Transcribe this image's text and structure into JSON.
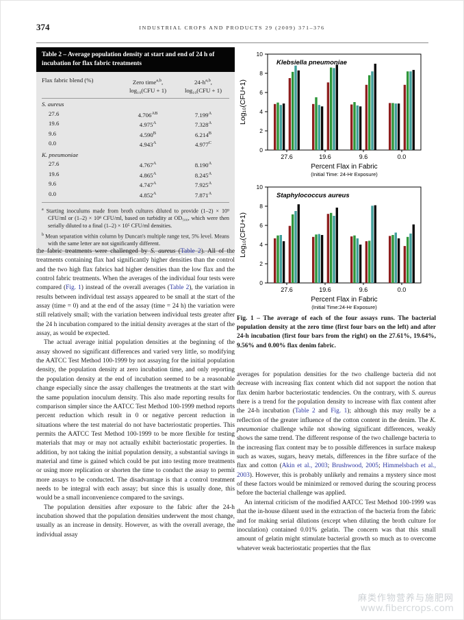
{
  "page": {
    "number": "374",
    "journal_line": "INDUSTRIAL CROPS AND PRODUCTS 29 (2009) 371–376"
  },
  "table2": {
    "caption": "Table 2 – Average population density at start and end of 24 h of incubation for flax fabric treatments",
    "columns": [
      {
        "line1": "Flax fabric blend (%)",
        "line2": ""
      },
      {
        "pre": "Zero time",
        "sup": "a,b",
        "post": ",",
        "line2": "log₁₀(CFU + 1)"
      },
      {
        "pre": "24-h",
        "sup": "a,b",
        "post": ",",
        "line2": "log₁₀(CFU + 1)"
      }
    ],
    "rows": [
      {
        "section": "S. aureus"
      },
      {
        "blend": "27.6",
        "zero": "4.706",
        "zero_sup": "AB",
        "h24": "7.199",
        "h24_sup": "A"
      },
      {
        "blend": "19.6",
        "zero": "4.975",
        "zero_sup": "A",
        "h24": "7.328",
        "h24_sup": "A"
      },
      {
        "blend": "9.6",
        "zero": "4.590",
        "zero_sup": "B",
        "h24": "6.214",
        "h24_sup": "B"
      },
      {
        "blend": "0.0",
        "zero": "4.943",
        "zero_sup": "A",
        "h24": "4.977",
        "h24_sup": "C"
      },
      {
        "section": "K. pneumoniae"
      },
      {
        "blend": "27.6",
        "zero": "4.767",
        "zero_sup": "A",
        "h24": "8.190",
        "h24_sup": "A"
      },
      {
        "blend": "19.6",
        "zero": "4.865",
        "zero_sup": "A",
        "h24": "8.245",
        "h24_sup": "A"
      },
      {
        "blend": "9.6",
        "zero": "4.747",
        "zero_sup": "A",
        "h24": "7.925",
        "h24_sup": "A"
      },
      {
        "blend": "0.0",
        "zero": "4.852",
        "zero_sup": "A",
        "h24": "7.871",
        "h24_sup": "A"
      }
    ],
    "footnotes": [
      {
        "mark": "a",
        "text": "Starting inoculums made from broth cultures diluted to provide (1–2) × 10⁹ CFU/ml or (1–2) × 10⁸ CFU/ml, based on turbidity at OD₅₀₀, which were then serially diluted to a final (1–2) × 10⁵ CFU/ml densities."
      },
      {
        "mark": "b",
        "text": "Mean separation within column by Duncan's multiple range test, 5% level. Means with the same letter are not significantly different."
      }
    ]
  },
  "left_column": {
    "paragraphs": [
      {
        "indent": false,
        "segs": [
          "the fabric treatments were challenged by ",
          {
            "t": "S. aureus",
            "s": "i"
          },
          " (",
          {
            "t": "Table 2",
            "s": "l"
          },
          "). All of the treatments containing flax had significantly higher densities than the control and the two high flax fabrics had higher densities than the low flax and the control fabric treatments. When the averages of the individual four tests were compared (",
          {
            "t": "Fig. 1",
            "s": "l"
          },
          ") instead of the overall averages (",
          {
            "t": "Table 2",
            "s": "l"
          },
          "), the variation in results between individual test assays appeared to be small at the start of the assay (time = 0) and at the end of the assay (time = 24 h) the variation were still relatively small; with the variation between individual tests greater after the 24 h incubation compared to the initial density averages at the start of the assay, as would be expected."
        ]
      },
      {
        "indent": true,
        "segs": [
          "The actual average initial population densities at the beginning of the assay showed no significant differences and varied very little, so modifying the AATCC Test Method 100-1999 by not assaying for the initial population density, the population density at zero incubation time, and only reporting the population density at the end of incubation seemed to be a reasonable change especially since the assay challenges the treatments at the start with the same population inoculum density. This also made reporting results for comparison simpler since the AATCC Test Method 100-1999 method reports percent reduction which result in 0 or negative percent reduction in situations where the test material do not have bacteriostatic properties. This permits the AATCC Test Method 100-1999 to be more flexible for testing materials that may or may not actually exhibit bacteriostatic properties. In addition, by not taking the initial population density, a substantial savings in material and time is gained which could be put into testing more treatments or using more replication or shorten the time to conduct the assay to permit more assays to be conducted. The disadvantage is that a control treatment needs to be integral with each assay; but since this is usually done, this would be a small inconvenience compared to the savings."
        ]
      },
      {
        "indent": true,
        "segs": [
          "The population densities after exposure to the fabric after the 24-h incubation showed that the population densities underwent the most change, usually as an increase in density. However, as with the overall average, the individual assay"
        ]
      }
    ]
  },
  "figure": {
    "caption": "Fig. 1 – The average of each of the four assays runs. The bacterial population density at the zero time (first four bars on the left) and after 24-h incubation (first four bars from the right) on the 27.61%, 19.64%, 9.56% and 0.00% flax denim fabric."
  },
  "right_column": {
    "paragraphs": [
      {
        "indent": false,
        "segs": [
          "averages for population densities for the two challenge bacteria did not decrease with increasing flax content which did not support the notion that flax denim harbor bacteriostatic tendencies. On the contrary, with ",
          {
            "t": "S. aureus",
            "s": "i"
          },
          " there is a trend for the population density to increase with flax content after the 24-h incubation (",
          {
            "t": "Table 2",
            "s": "l"
          },
          " and ",
          {
            "t": "Fig. 1",
            "s": "l"
          },
          "); although this may really be a reflection of the greater influence of the cotton content in the denim. The ",
          {
            "t": "K. pneumoniae",
            "s": "i"
          },
          " challenge while not showing significant differences, weakly shows the same trend. The different response of the two challenge bacteria to the increasing flax content may be to possible differences in surface makeup such as waxes, sugars, heavy metals, differences in the fibre surface of the flax and cotton (",
          {
            "t": "Akin et al., 2003",
            "s": "l"
          },
          "; ",
          {
            "t": "Brushwood, 2005",
            "s": "l"
          },
          "; ",
          {
            "t": "Himmelsbach et al., 2003",
            "s": "l"
          },
          "). However, this is probably unlikely and remains a mystery since most of these factors would be minimized or removed during the scouring process before the bacterial challenge was applied."
        ]
      },
      {
        "indent": true,
        "segs": [
          "An internal criticism of the modified AATCC Test Method 100-1999 was that the in-house diluent used in the extraction of the bacteria from the fabric and for making serial dilutions (except when diluting the broth culture for inoculation) contained 0.01% gelatin. The concern was that this small amount of gelatin might stimulate bacterial growth so much as to overcome whatever weak bacteriostatic properties that the flax"
        ]
      }
    ]
  },
  "watermark": {
    "line1": "麻类作物营养与施肥网",
    "line2": "www.fibercrops.com"
  },
  "chart_data": [
    {
      "type": "bar",
      "title": "Klebsiella pneumoniae",
      "ylabel": "Log₁₀(CFU+1)",
      "xlabel": "Percent Flax in Fabric",
      "xlabel_note": "(Initial Time: 24-Hr Exposure)",
      "ylim": [
        0,
        10
      ],
      "yticks": [
        0,
        2,
        4,
        6,
        8,
        10
      ],
      "categories": [
        "27.6",
        "19.6",
        "9.6",
        "0.0"
      ],
      "run_colors": [
        "#8e1f1f",
        "#2e9639",
        "#3f9f9b",
        "#0a0a0a"
      ],
      "legend_note": "4 assay runs per group; first 4 bars = zero time, last 4 bars = 24-h incubation",
      "grid": false,
      "groups": [
        {
          "category": "27.6",
          "zero_time": [
            4.8,
            4.95,
            4.7,
            4.85
          ],
          "after_24h": [
            7.5,
            8.15,
            8.8,
            8.3
          ]
        },
        {
          "category": "19.6",
          "zero_time": [
            4.8,
            5.5,
            4.7,
            4.55
          ],
          "after_24h": [
            7.05,
            8.6,
            8.55,
            8.9
          ]
        },
        {
          "category": "9.6",
          "zero_time": [
            4.75,
            5.0,
            4.65,
            4.55
          ],
          "after_24h": [
            6.8,
            7.8,
            8.2,
            9.0
          ]
        },
        {
          "category": "0.0",
          "zero_time": [
            4.9,
            4.9,
            4.85,
            4.85
          ],
          "after_24h": [
            6.8,
            8.2,
            8.2,
            8.35
          ]
        }
      ]
    },
    {
      "type": "bar",
      "title": "Staphylococcus aureus",
      "ylabel": "Log₁₀(CFU+1)",
      "xlabel": "Percent Flax in Fabric",
      "xlabel_note": "(Initial Time:24-Hr Exposure)",
      "ylim": [
        0,
        10
      ],
      "yticks": [
        0,
        2,
        4,
        6,
        8,
        10
      ],
      "categories": [
        "27.6",
        "19.6",
        "9.6",
        "0.0"
      ],
      "run_colors": [
        "#8e1f1f",
        "#2e9639",
        "#3f9f9b",
        "#0a0a0a"
      ],
      "legend_note": "4 assay runs per group; first 4 bars = zero time, last 4 bars = 24-h incubation",
      "grid": false,
      "groups": [
        {
          "category": "27.6",
          "zero_time": [
            4.65,
            4.95,
            5.0,
            4.35
          ],
          "after_24h": [
            5.95,
            7.15,
            7.5,
            8.2
          ]
        },
        {
          "category": "19.6",
          "zero_time": [
            4.8,
            5.05,
            5.1,
            5.0
          ],
          "after_24h": [
            7.2,
            7.3,
            7.0,
            7.85
          ]
        },
        {
          "category": "9.6",
          "zero_time": [
            4.85,
            4.95,
            4.65,
            4.0
          ],
          "after_24h": [
            4.35,
            4.4,
            8.05,
            8.1
          ]
        },
        {
          "category": "0.0",
          "zero_time": [
            4.9,
            5.0,
            5.25,
            4.65
          ],
          "after_24h": [
            3.85,
            4.8,
            5.15,
            6.1
          ]
        }
      ]
    }
  ]
}
